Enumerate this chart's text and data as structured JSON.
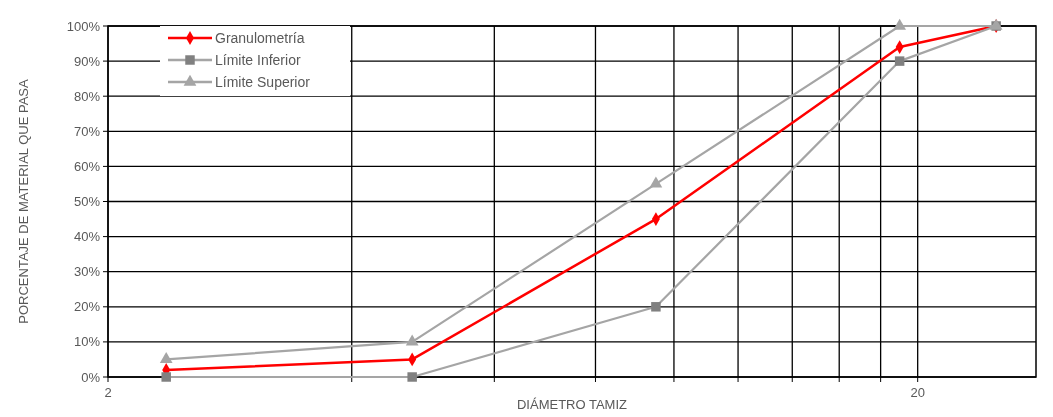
{
  "chart_data": {
    "type": "line",
    "xlabel": "DIÁMETRO TAMIZ",
    "ylabel": "PORCENTAJE DE MATERIAL QUE PASA",
    "log": "x",
    "grid": true,
    "legend": "top left",
    "x": [
      2.36,
      4.75,
      9.5,
      19,
      25
    ],
    "xlim": [
      2,
      28
    ],
    "xticks": [
      {
        "value": 2,
        "label": "2"
      },
      {
        "value": 4,
        "label": null
      },
      {
        "value": 6,
        "label": null
      },
      {
        "value": 8,
        "label": null
      },
      {
        "value": 10,
        "label": null
      },
      {
        "value": 12,
        "label": null
      },
      {
        "value": 14,
        "label": null
      },
      {
        "value": 16,
        "label": null
      },
      {
        "value": 18,
        "label": null
      },
      {
        "value": 20,
        "label": "20"
      }
    ],
    "ylim": [
      0,
      100
    ],
    "yticks": [
      {
        "value": 0,
        "label": "0%"
      },
      {
        "value": 10,
        "label": "10%"
      },
      {
        "value": 20,
        "label": "20%"
      },
      {
        "value": 30,
        "label": "30%"
      },
      {
        "value": 40,
        "label": "40%"
      },
      {
        "value": 50,
        "label": "50%"
      },
      {
        "value": 60,
        "label": "60%"
      },
      {
        "value": 70,
        "label": "70%"
      },
      {
        "value": 80,
        "label": "80%"
      },
      {
        "value": 90,
        "label": "90%"
      },
      {
        "value": 100,
        "label": "100%"
      }
    ],
    "series": [
      {
        "name": "Granulometría",
        "color": "#ff0000",
        "marker": "diamond",
        "values": [
          2,
          5,
          45,
          94,
          100
        ]
      },
      {
        "name": "Límite Inferior",
        "color": "#a5a5a5",
        "marker": "square",
        "values": [
          0,
          0,
          20,
          90,
          100
        ]
      },
      {
        "name": "Límite Superior",
        "color": "#a5a5a5",
        "marker": "triangle",
        "values": [
          5,
          10,
          55,
          100,
          100
        ]
      }
    ]
  }
}
